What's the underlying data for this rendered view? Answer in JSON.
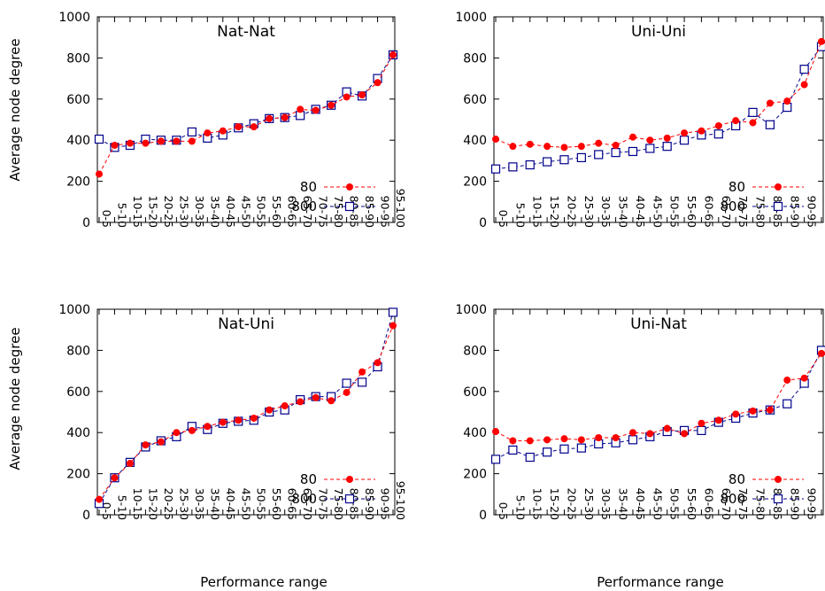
{
  "figure": {
    "y_axis_label": "Average node degree",
    "x_axis_label": "Performance range"
  },
  "colors": {
    "series_80": "#ff0000",
    "series_800": "#00008b"
  },
  "chart_data": [
    {
      "type": "line",
      "title": "Nat-Nat",
      "xlabel": "",
      "ylabel": "Average node degree",
      "categories": [
        "0-5",
        "5-10",
        "10-15",
        "15-20",
        "20-25",
        "25-30",
        "30-35",
        "35-40",
        "40-45",
        "45-50",
        "50-55",
        "55-60",
        "60-65",
        "65-70",
        "70-75",
        "75-80",
        "80-85",
        "85-90",
        "90-95",
        "95-100"
      ],
      "ylim": [
        0,
        1000
      ],
      "yticks": [
        0,
        200,
        400,
        600,
        800,
        1000
      ],
      "grid": false,
      "legend": "bottom-right",
      "series": [
        {
          "name": "80",
          "marker": "filled-circle",
          "values": [
            235,
            375,
            385,
            385,
            395,
            395,
            395,
            435,
            445,
            465,
            465,
            505,
            510,
            550,
            545,
            570,
            610,
            620,
            680,
            815
          ]
        },
        {
          "name": "800",
          "marker": "open-square",
          "values": [
            405,
            365,
            375,
            405,
            400,
            400,
            440,
            410,
            425,
            460,
            480,
            505,
            510,
            520,
            550,
            570,
            635,
            615,
            700,
            815
          ]
        }
      ]
    },
    {
      "type": "line",
      "title": "Uni-Uni",
      "xlabel": "",
      "ylabel": "",
      "categories": [
        "0-5",
        "5-10",
        "10-15",
        "15-20",
        "20-25",
        "25-30",
        "30-35",
        "35-40",
        "40-45",
        "45-50",
        "50-55",
        "55-60",
        "60-65",
        "65-70",
        "70-75",
        "75-80",
        "80-85",
        "85-90",
        "90-95",
        "95-100"
      ],
      "ylim": [
        0,
        1000
      ],
      "yticks": [
        0,
        200,
        400,
        600,
        800,
        1000
      ],
      "grid": false,
      "legend": "bottom-right",
      "series": [
        {
          "name": "80",
          "marker": "filled-circle",
          "values": [
            405,
            370,
            380,
            370,
            365,
            370,
            385,
            375,
            415,
            400,
            410,
            435,
            445,
            470,
            495,
            485,
            580,
            590,
            670,
            880
          ]
        },
        {
          "name": "800",
          "marker": "open-square",
          "values": [
            260,
            270,
            280,
            295,
            305,
            315,
            330,
            340,
            345,
            360,
            370,
            400,
            425,
            430,
            470,
            535,
            475,
            560,
            745,
            855
          ]
        }
      ]
    },
    {
      "type": "line",
      "title": "Nat-Uni",
      "xlabel": "Performance range",
      "ylabel": "Average node degree",
      "categories": [
        "0-5",
        "5-10",
        "10-15",
        "15-20",
        "20-25",
        "25-30",
        "30-35",
        "35-40",
        "40-45",
        "45-50",
        "50-55",
        "55-60",
        "60-65",
        "65-70",
        "70-75",
        "75-80",
        "80-85",
        "85-90",
        "90-95",
        "95-100"
      ],
      "ylim": [
        0,
        1000
      ],
      "yticks": [
        0,
        200,
        400,
        600,
        800,
        1000
      ],
      "grid": false,
      "legend": "bottom-right",
      "series": [
        {
          "name": "80",
          "marker": "filled-circle",
          "values": [
            75,
            180,
            250,
            340,
            355,
            400,
            410,
            430,
            450,
            460,
            470,
            510,
            530,
            550,
            570,
            555,
            595,
            695,
            740,
            920
          ]
        },
        {
          "name": "800",
          "marker": "open-square",
          "values": [
            55,
            180,
            255,
            330,
            360,
            380,
            430,
            415,
            445,
            455,
            460,
            500,
            510,
            560,
            575,
            575,
            640,
            645,
            720,
            985
          ]
        }
      ]
    },
    {
      "type": "line",
      "title": "Uni-Nat",
      "xlabel": "Performance range",
      "ylabel": "",
      "categories": [
        "0-5",
        "5-10",
        "10-15",
        "15-20",
        "20-25",
        "25-30",
        "30-35",
        "35-40",
        "40-45",
        "45-50",
        "50-55",
        "55-60",
        "60-65",
        "65-70",
        "70-75",
        "75-80",
        "80-85",
        "85-90",
        "90-95",
        "95-100"
      ],
      "ylim": [
        0,
        1000
      ],
      "yticks": [
        0,
        200,
        400,
        600,
        800,
        1000
      ],
      "grid": false,
      "legend": "bottom-right",
      "series": [
        {
          "name": "80",
          "marker": "filled-circle",
          "values": [
            405,
            360,
            360,
            365,
            370,
            365,
            375,
            375,
            400,
            395,
            420,
            395,
            445,
            460,
            490,
            505,
            510,
            655,
            665,
            785
          ]
        },
        {
          "name": "800",
          "marker": "open-square",
          "values": [
            270,
            315,
            280,
            305,
            320,
            325,
            345,
            350,
            365,
            380,
            405,
            410,
            410,
            450,
            470,
            495,
            510,
            540,
            640,
            800
          ]
        }
      ]
    }
  ]
}
